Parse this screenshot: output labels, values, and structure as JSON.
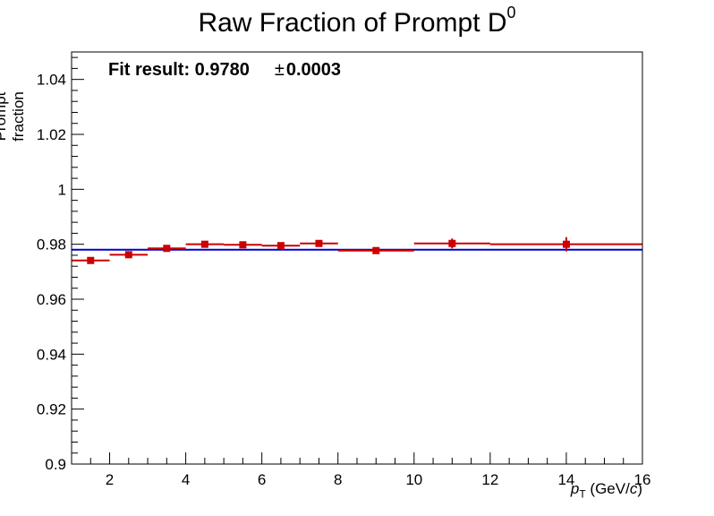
{
  "title": {
    "main": "Raw Fraction of Prompt D",
    "sup": "0"
  },
  "annotation": {
    "label": "Fit result: 0.9780",
    "pm": "±",
    "error": "0.0003"
  },
  "axis": {
    "ylabel": "Prompt fraction",
    "xlabel_var": "p",
    "xlabel_sub": "T",
    "xlabel_unit_open": " (GeV/",
    "xlabel_unit_c": "c",
    "xlabel_unit_close": ")"
  },
  "chart_data": {
    "type": "scatter",
    "title": "Raw Fraction of Prompt D0",
    "xlabel": "pT (GeV/c)",
    "ylabel": "Prompt fraction",
    "xlim": [
      1,
      16
    ],
    "ylim": [
      0.9,
      1.05
    ],
    "xticks": [
      2,
      4,
      6,
      8,
      10,
      12,
      14,
      16
    ],
    "yticks": [
      0.9,
      0.92,
      0.94,
      0.96,
      0.98,
      1,
      1.02,
      1.04
    ],
    "ytick_labels": [
      "0.9",
      "0.92",
      "0.94",
      "0.96",
      "0.98",
      "1",
      "1.02",
      "1.04"
    ],
    "series": [
      {
        "marker_color": "#cc0000",
        "points": [
          {
            "x": 1.5,
            "xlo": 1,
            "xhi": 2,
            "y": 0.9741,
            "yerr": 0.0008
          },
          {
            "x": 2.5,
            "xlo": 2,
            "xhi": 3,
            "y": 0.9762,
            "yerr": 0.0007
          },
          {
            "x": 3.5,
            "xlo": 3,
            "xhi": 4,
            "y": 0.9785,
            "yerr": 0.0008
          },
          {
            "x": 4.5,
            "xlo": 4,
            "xhi": 5,
            "y": 0.98,
            "yerr": 0.0008
          },
          {
            "x": 5.5,
            "xlo": 5,
            "xhi": 6,
            "y": 0.9798,
            "yerr": 0.0008
          },
          {
            "x": 6.5,
            "xlo": 6,
            "xhi": 7,
            "y": 0.9795,
            "yerr": 0.0008
          },
          {
            "x": 7.5,
            "xlo": 7,
            "xhi": 8,
            "y": 0.9803,
            "yerr": 0.0009
          },
          {
            "x": 9,
            "xlo": 8,
            "xhi": 10,
            "y": 0.9777,
            "yerr": 0.0012
          },
          {
            "x": 11,
            "xlo": 10,
            "xhi": 12,
            "y": 0.9803,
            "yerr": 0.0018
          },
          {
            "x": 14,
            "xlo": 12,
            "xhi": 16,
            "y": 0.98,
            "yerr": 0.0026
          }
        ]
      }
    ],
    "fit": {
      "value": 0.978,
      "color": "#0000cc"
    }
  }
}
